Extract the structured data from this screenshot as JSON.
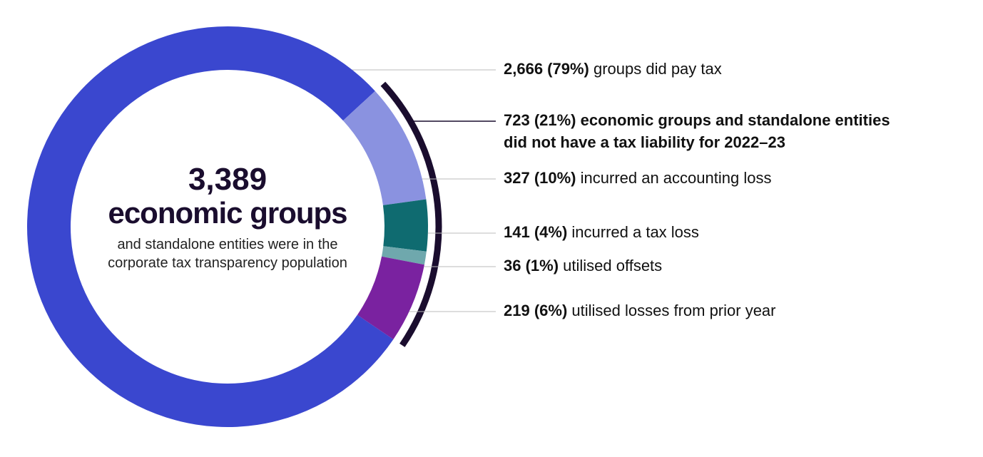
{
  "chart_data": {
    "type": "pie",
    "categories": [
      "groups did pay tax",
      "incurred an accounting loss",
      "incurred a tax loss",
      "utilised offsets",
      "utilised losses from prior year"
    ],
    "values": [
      2666,
      327,
      141,
      36,
      219
    ],
    "value_labels": [
      "2,666 (79%)",
      "327 (10%)",
      "141 (4%)",
      "36 (1%)",
      "219 (6%)"
    ],
    "colors": [
      "#3a47cf",
      "#8a92e0",
      "#0f6b70",
      "#6fa8ad",
      "#7a22a0"
    ],
    "bracket_label": "723 (21%) economic groups and standalone entities did not have a tax liability for 2022–23",
    "center_total": "3,389",
    "center_unit": "economic groups",
    "center_text": "and standalone entities were in the corporate tax transparency population"
  }
}
